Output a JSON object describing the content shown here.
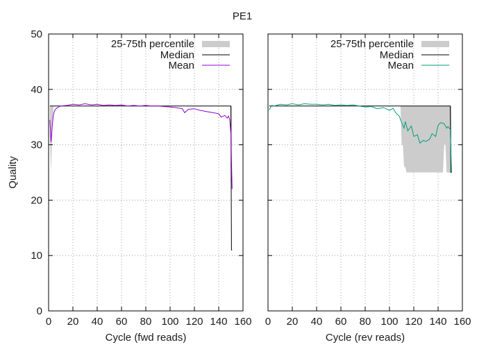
{
  "title": "PE1",
  "colors": {
    "iqr_fill": "#cccccc",
    "median": "#000000",
    "mean_fwd": "#9400d3",
    "mean_rev": "#009e73"
  },
  "chart_data": [
    {
      "type": "area",
      "panel": "fwd",
      "xlabel": "Cycle (fwd reads)",
      "ylabel": "Quality",
      "xlim": [
        0,
        160
      ],
      "ylim": [
        0,
        50
      ],
      "xticks": [
        0,
        20,
        40,
        60,
        80,
        100,
        120,
        140,
        160
      ],
      "yticks": [
        0,
        10,
        20,
        30,
        40,
        50
      ],
      "grid": true,
      "legend_position": "top-right",
      "legend": [
        "25-75th percentile",
        "Median",
        "Mean"
      ],
      "series": [
        {
          "name": "25-75th percentile",
          "kind": "band",
          "x": [
            1,
            2,
            3,
            4,
            5,
            6,
            7,
            8,
            150,
            151
          ],
          "lower": [
            32,
            25,
            32,
            37,
            37,
            37,
            37,
            37,
            37,
            25
          ],
          "upper": [
            37,
            37,
            37,
            37,
            37,
            37,
            37,
            37,
            37,
            37
          ]
        },
        {
          "name": "Median",
          "kind": "step",
          "x": [
            1,
            150,
            150.5,
            151
          ],
          "y": [
            37,
            37,
            11,
            11
          ]
        },
        {
          "name": "Mean",
          "kind": "line",
          "x": [
            1,
            2,
            3,
            4,
            5,
            6,
            8,
            10,
            15,
            20,
            25,
            30,
            35,
            40,
            45,
            50,
            55,
            60,
            65,
            70,
            75,
            80,
            85,
            90,
            95,
            100,
            105,
            110,
            112,
            115,
            120,
            125,
            130,
            135,
            140,
            142,
            145,
            147,
            148,
            149,
            150,
            151
          ],
          "y": [
            34.5,
            30.5,
            33.5,
            35.5,
            36.2,
            36.5,
            36.8,
            37.0,
            37.1,
            37.3,
            37.2,
            37.4,
            37.2,
            37.3,
            37.1,
            37.2,
            37.1,
            37.2,
            37.0,
            37.1,
            37.0,
            37.1,
            37.0,
            37.0,
            36.9,
            36.8,
            36.7,
            36.5,
            35.8,
            36.4,
            36.5,
            36.2,
            36.0,
            35.8,
            35.6,
            35.0,
            35.3,
            34.8,
            35.2,
            34.6,
            32.0,
            22.0
          ]
        }
      ]
    },
    {
      "type": "area",
      "panel": "rev",
      "xlabel": "Cycle (rev reads)",
      "ylabel": "",
      "xlim": [
        0,
        160
      ],
      "ylim": [
        0,
        50
      ],
      "xticks": [
        0,
        20,
        40,
        60,
        80,
        100,
        120,
        140,
        160
      ],
      "yticks": [
        0,
        10,
        20,
        30,
        40,
        50
      ],
      "grid": true,
      "legend_position": "top-right",
      "legend": [
        "25-75th percentile",
        "Median",
        "Mean"
      ],
      "series": [
        {
          "name": "25-75th percentile",
          "kind": "band",
          "x": [
            109,
            110,
            111,
            112,
            113,
            114,
            115,
            143,
            144,
            145,
            146,
            147,
            148,
            150,
            151
          ],
          "lower": [
            37,
            30,
            30,
            26,
            26,
            25,
            25,
            25,
            25,
            30,
            30,
            25,
            25,
            25,
            25
          ],
          "upper": [
            37,
            37,
            37,
            37,
            37,
            37,
            37,
            37,
            37,
            37,
            37,
            37,
            37,
            37,
            37
          ]
        },
        {
          "name": "Median",
          "kind": "step",
          "x": [
            1,
            150,
            150.5,
            151
          ],
          "y": [
            37,
            37,
            25,
            25
          ]
        },
        {
          "name": "Mean",
          "kind": "line",
          "x": [
            1,
            3,
            5,
            10,
            15,
            20,
            25,
            30,
            35,
            40,
            45,
            50,
            55,
            60,
            65,
            70,
            75,
            80,
            85,
            90,
            95,
            100,
            103,
            105,
            108,
            110,
            112,
            113,
            115,
            118,
            120,
            123,
            125,
            128,
            130,
            133,
            135,
            138,
            140,
            142,
            145,
            147,
            148,
            150,
            151
          ],
          "y": [
            36.3,
            37.1,
            37.0,
            37.3,
            37.2,
            37.4,
            37.2,
            37.4,
            37.3,
            37.3,
            37.2,
            37.3,
            37.1,
            37.2,
            37.1,
            37.2,
            37.0,
            36.8,
            36.9,
            36.5,
            36.7,
            36.2,
            36.6,
            35.8,
            35.2,
            34.0,
            33.0,
            34.2,
            32.5,
            33.4,
            31.5,
            31.8,
            30.3,
            30.8,
            30.6,
            31.0,
            32.0,
            31.5,
            33.5,
            34.0,
            33.8,
            33.0,
            33.3,
            32.8,
            25.0
          ]
        }
      ]
    }
  ]
}
